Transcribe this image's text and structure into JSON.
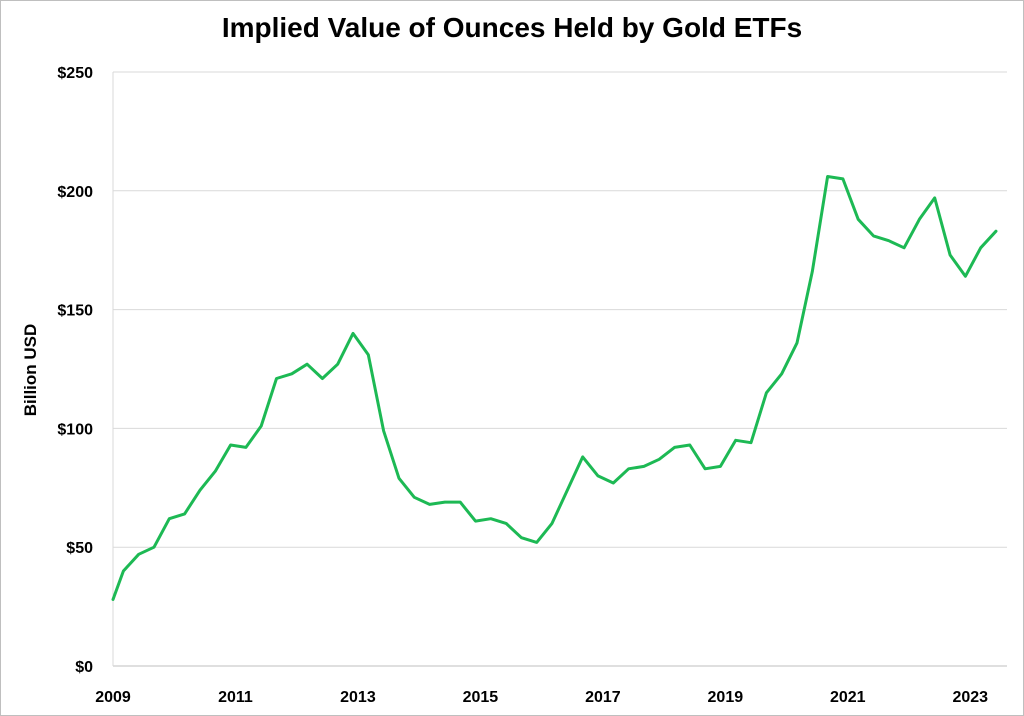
{
  "chart_data": {
    "type": "line",
    "title": "Implied Value of Ounces Held by Gold ETFs",
    "xlabel": "",
    "ylabel": "Billion USD",
    "xlim": [
      2009,
      2023.6
    ],
    "ylim": [
      0,
      250
    ],
    "x_ticks": [
      2009,
      2011,
      2013,
      2015,
      2017,
      2019,
      2021,
      2023
    ],
    "y_ticks": [
      0,
      50,
      100,
      150,
      200,
      250
    ],
    "y_tick_labels": [
      "$0",
      "$50",
      "$100",
      "$150",
      "$200",
      "$250"
    ],
    "grid": true,
    "legend": "none",
    "color": "#1db954",
    "series": [
      {
        "x": [
          2009.0,
          2009.17,
          2009.42,
          2009.67,
          2009.92,
          2010.17,
          2010.42,
          2010.67,
          2010.92,
          2011.17,
          2011.42,
          2011.67,
          2011.92,
          2012.17,
          2012.42,
          2012.67,
          2012.92,
          2013.17,
          2013.42,
          2013.67,
          2013.92,
          2014.17,
          2014.42,
          2014.67,
          2014.92,
          2015.17,
          2015.42,
          2015.67,
          2015.92,
          2016.17,
          2016.42,
          2016.67,
          2016.92,
          2017.17,
          2017.42,
          2017.67,
          2017.92,
          2018.17,
          2018.42,
          2018.67,
          2018.92,
          2019.17,
          2019.42,
          2019.67,
          2019.92,
          2020.17,
          2020.42,
          2020.67,
          2020.92,
          2021.17,
          2021.42,
          2021.67,
          2021.92,
          2022.17,
          2022.42,
          2022.67,
          2022.92,
          2023.17,
          2023.42
        ],
        "values": [
          28,
          40,
          47,
          50,
          62,
          64,
          74,
          82,
          93,
          92,
          101,
          121,
          123,
          127,
          121,
          127,
          140,
          131,
          99,
          79,
          71,
          68,
          69,
          69,
          61,
          62,
          60,
          54,
          52,
          60,
          74,
          88,
          80,
          77,
          83,
          84,
          87,
          92,
          93,
          83,
          84,
          95,
          94,
          115,
          123,
          136,
          166,
          206,
          205,
          188,
          181,
          179,
          176,
          188,
          197,
          173,
          164,
          176,
          183
        ]
      }
    ]
  }
}
